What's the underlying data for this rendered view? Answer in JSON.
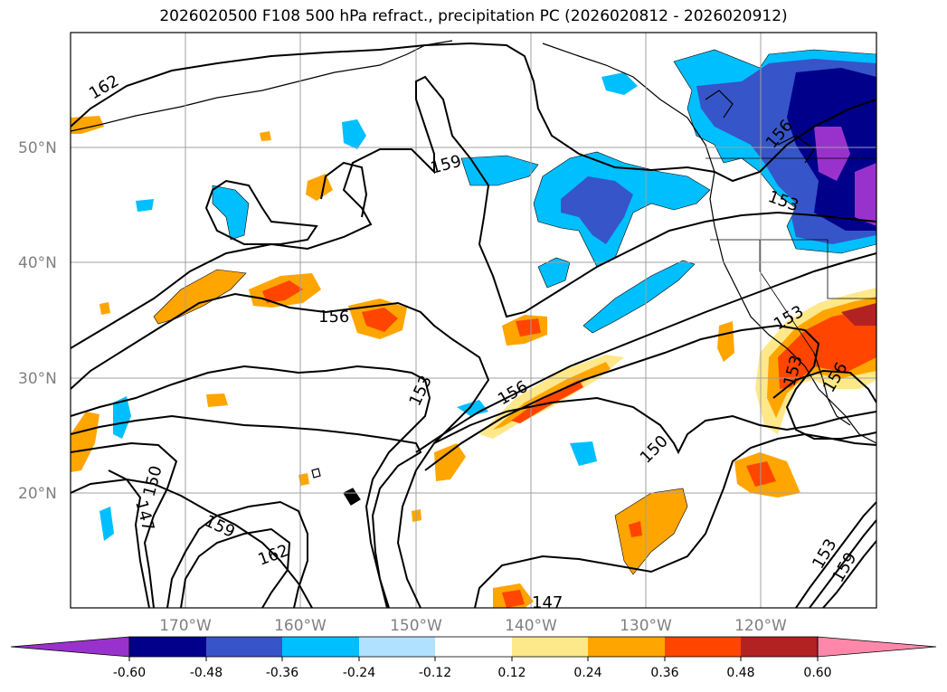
{
  "title": "2026020500 F108 500 hPa refract., precipitation PC (2026020812 - 2026020912)",
  "map": {
    "lat_labels": [
      "50°N",
      "40°N",
      "30°N",
      "20°N"
    ],
    "lon_labels": [
      "170°W",
      "160°W",
      "150°W",
      "140°W",
      "130°W",
      "120°W"
    ],
    "gridlines": true,
    "extent": {
      "lon": [
        -180,
        -110
      ],
      "lat": [
        10,
        60
      ]
    }
  },
  "contours": {
    "variable": "500 hPa refractivity",
    "levels_labeled": [
      "162",
      "159",
      "156",
      "153",
      "150",
      "147",
      "162",
      "159",
      "156",
      "153",
      "150",
      "147",
      "153",
      "156",
      "153",
      "159",
      "153",
      "156",
      "159"
    ]
  },
  "colorbar": {
    "ticks": [
      "-0.60",
      "-0.48",
      "-0.36",
      "-0.24",
      "-0.12",
      "0.12",
      "0.24",
      "0.36",
      "0.48",
      "0.60"
    ],
    "colors": [
      "#9932cc",
      "#00008b",
      "#3655c8",
      "#00bfff",
      "#b0e2ff",
      "#ffffff",
      "#ffe88a",
      "#ffa500",
      "#ff4500",
      "#b22222",
      "#ff88aa"
    ]
  }
}
